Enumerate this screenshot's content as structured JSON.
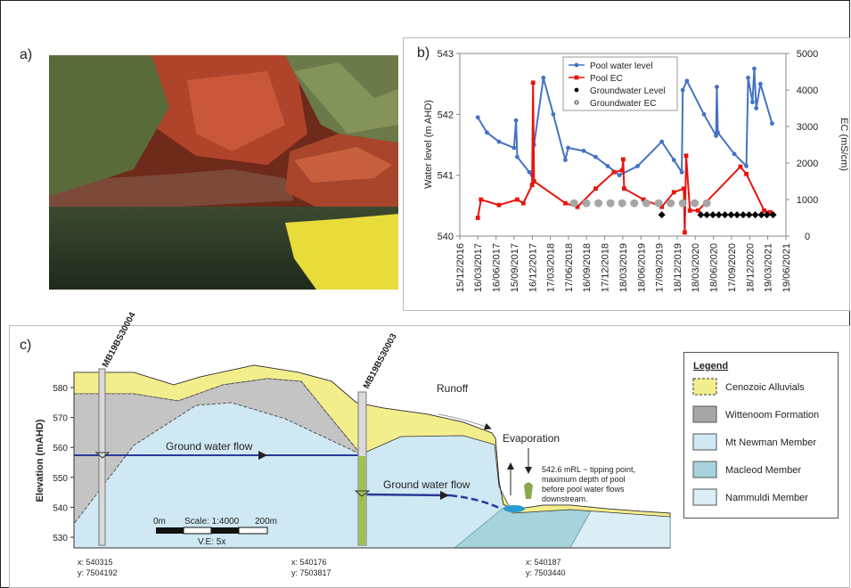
{
  "panel_a": {
    "label": "a)"
  },
  "chart_data": {
    "type": "line",
    "label": "b)",
    "y_label": "Water level (m AHD)",
    "y2_label": "EC (mS/cm)",
    "xlim": [
      "15/12/2016",
      "19/06/2021"
    ],
    "xticks": [
      "15/12/2016",
      "16/03/2017",
      "16/06/2017",
      "15/09/2017",
      "16/12/2017",
      "17/03/2018",
      "17/06/2018",
      "16/09/2018",
      "17/12/2018",
      "18/03/2019",
      "18/06/2019",
      "17/09/2019",
      "18/12/2019",
      "18/03/2020",
      "18/06/2020",
      "17/09/2020",
      "18/12/2020",
      "19/03/2021",
      "19/06/2021"
    ],
    "ylim": [
      540,
      543
    ],
    "yticks": [
      540,
      541,
      542,
      543
    ],
    "y2lim": [
      0,
      5000
    ],
    "y2ticks": [
      0,
      1000,
      2000,
      3000,
      4000,
      5000
    ],
    "legend": "top-center",
    "series": [
      {
        "name": "Pool water level",
        "color": "#4472c4",
        "style": "line",
        "marker": "circle",
        "x": [
          "16/03/2017",
          "01/05/2017",
          "01/07/2017",
          "15/09/2017",
          "25/09/2017",
          "01/10/2017",
          "01/12/2017",
          "15/12/2017",
          "25/12/2017",
          "10/02/2018",
          "01/04/2018",
          "01/06/2018",
          "15/06/2018",
          "01/09/2018",
          "01/11/2018",
          "01/01/2019",
          "01/03/2019",
          "01/06/2019",
          "01/10/2019",
          "01/12/2019",
          "10/01/2020",
          "15/01/2020",
          "05/02/2020",
          "01/05/2020",
          "01/07/2020",
          "05/07/2020",
          "10/07/2020",
          "01/10/2020",
          "01/12/2020",
          "10/12/2020",
          "01/01/2021",
          "10/01/2021",
          "20/01/2021",
          "10/02/2021",
          "10/04/2021"
        ],
        "values": [
          541.95,
          541.7,
          541.55,
          541.45,
          541.9,
          541.3,
          541.05,
          541.0,
          541.5,
          542.6,
          542.0,
          541.25,
          541.45,
          541.4,
          541.3,
          541.15,
          541.0,
          541.15,
          541.55,
          541.25,
          541.05,
          542.4,
          542.55,
          542.0,
          541.65,
          542.45,
          541.7,
          541.35,
          541.15,
          542.6,
          542.2,
          542.75,
          542.1,
          542.5,
          541.85
        ]
      },
      {
        "name": "Pool EC",
        "color": "#e8140e",
        "style": "line",
        "marker": "square",
        "axis": "y2",
        "x": [
          "16/03/2017",
          "01/04/2017",
          "01/07/2017",
          "01/10/2017",
          "01/11/2017",
          "15/12/2017",
          "20/12/2017",
          "25/12/2017",
          "01/06/2018",
          "01/08/2018",
          "01/11/2018",
          "01/02/2019",
          "15/03/2019",
          "20/03/2019",
          "25/03/2019",
          "01/07/2019",
          "01/10/2019",
          "01/12/2019",
          "20/01/2020",
          "25/01/2020",
          "01/02/2020",
          "20/02/2020",
          "01/04/2020",
          "01/11/2020",
          "01/12/2020",
          "01/03/2021",
          "01/04/2021"
        ],
        "values": [
          500,
          1000,
          850,
          1000,
          900,
          1400,
          4200,
          1500,
          900,
          800,
          1300,
          1750,
          1800,
          2100,
          1300,
          1000,
          800,
          1200,
          1300,
          100,
          2200,
          700,
          700,
          1900,
          1700,
          700,
          650
        ]
      },
      {
        "name": "Groundwater Level",
        "color": "#000000",
        "style": "scatter",
        "marker": "diamond",
        "x": [
          "01/10/2019",
          "15/04/2020",
          "15/05/2020",
          "15/06/2020",
          "15/07/2020",
          "15/08/2020",
          "15/09/2020",
          "15/10/2020",
          "15/11/2020",
          "15/12/2020",
          "15/01/2021",
          "15/02/2021",
          "15/03/2021",
          "15/04/2021"
        ],
        "values": [
          540.35,
          540.35,
          540.35,
          540.35,
          540.35,
          540.35,
          540.35,
          540.35,
          540.35,
          540.35,
          540.35,
          540.35,
          540.35,
          540.35
        ]
      },
      {
        "name": "Groundwater EC",
        "color": "#a6a6a6",
        "style": "scatter",
        "marker": "circle",
        "axis": "y2",
        "x": [
          "15/07/2018",
          "15/09/2018",
          "15/11/2018",
          "15/01/2019",
          "15/03/2019",
          "15/05/2019",
          "15/07/2019",
          "15/09/2019",
          "15/11/2019",
          "15/01/2020",
          "15/03/2020",
          "15/05/2020"
        ],
        "values": [
          900,
          900,
          900,
          900,
          900,
          900,
          900,
          900,
          900,
          900,
          900,
          900
        ]
      }
    ]
  },
  "cross_section": {
    "label": "c)",
    "y_label": "Elevation (mAHD)",
    "yticks": [
      530,
      540,
      550,
      560,
      570,
      580
    ],
    "wells": [
      "MB19BS30004",
      "MB19BS30003"
    ],
    "annotations": {
      "runoff": "Runoff",
      "evaporation": "Evaporation",
      "flow_1": "Ground water flow",
      "flow_2": "Ground water flow",
      "tipping": [
        "542.6 mRL ~ tipping point,",
        "maximum depth of pool",
        "before pool water flows",
        "downstream."
      ]
    },
    "scale": {
      "start": "0m",
      "ratio": "Scale: 1:4000",
      "end": "200m",
      "ve": "V.E: 5x"
    },
    "coordinates": [
      [
        "x: 540315",
        "y: 7504192"
      ],
      [
        "x: 540176",
        "y: 7503817"
      ],
      [
        "x: 540187",
        "y: 7503440"
      ]
    ],
    "legend": {
      "title": "Legend",
      "items": [
        "Cenozoic Alluvials",
        "Wittenoom Formation",
        "Mt Newman Member",
        "Macleod Member",
        "Nammuldi Member"
      ]
    }
  }
}
